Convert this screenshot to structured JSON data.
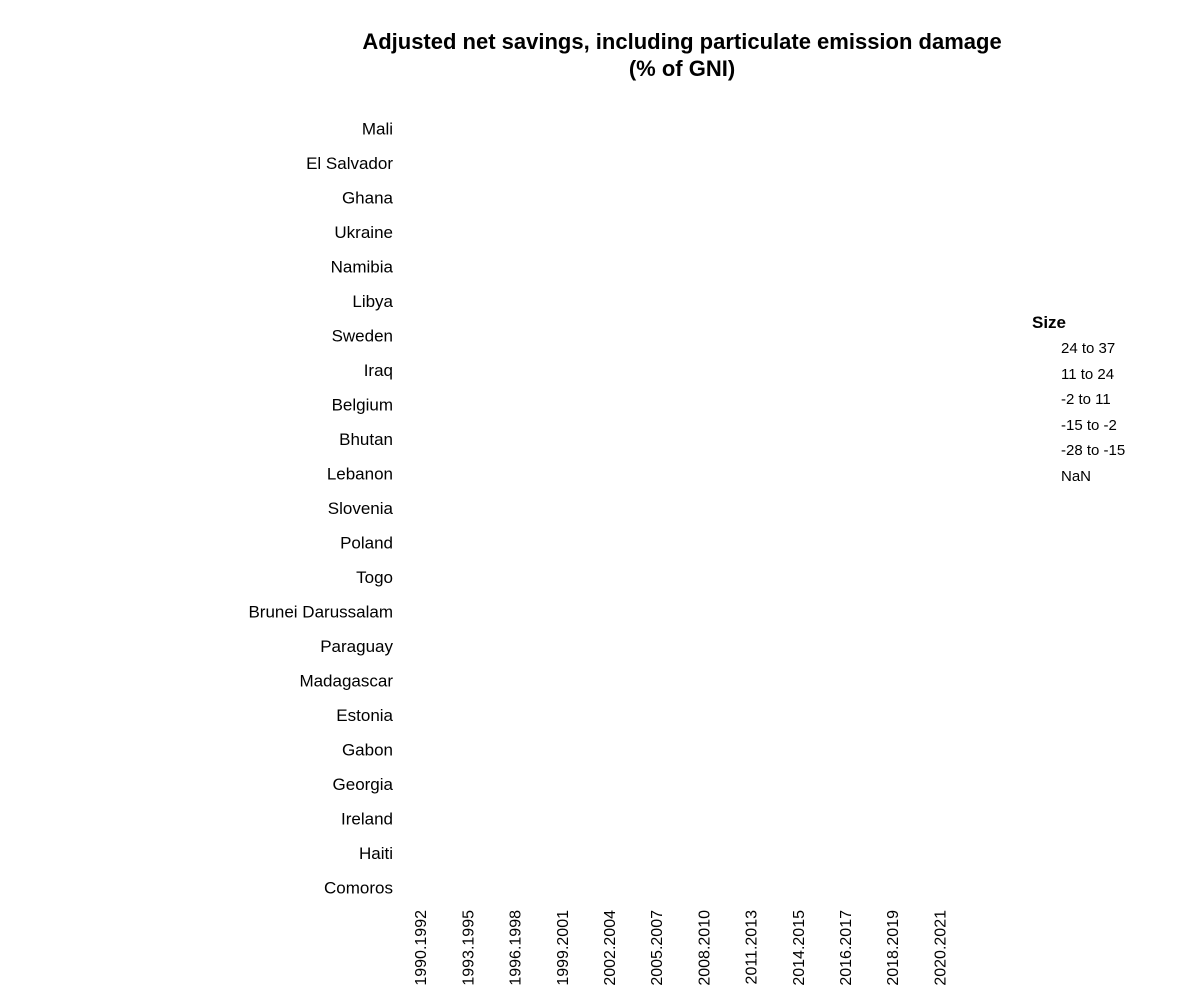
{
  "chart_data": {
    "type": "scatter",
    "title": "Adjusted net savings, including particulate emission damage",
    "subtitle": "(% of GNI)",
    "categories_y": [
      "Mali",
      "El Salvador",
      "Ghana",
      "Ukraine",
      "Namibia",
      "Libya",
      "Sweden",
      "Iraq",
      "Belgium",
      "Bhutan",
      "Lebanon",
      "Slovenia",
      "Poland",
      "Togo",
      "Brunei Darussalam",
      "Paraguay",
      "Madagascar",
      "Estonia",
      "Gabon",
      "Georgia",
      "Ireland",
      "Haiti",
      "Comoros"
    ],
    "categories_x": [
      "1990.1992",
      "1993.1995",
      "1996.1998",
      "1999.2001",
      "2002.2004",
      "2005.2007",
      "2008.2010",
      "2011.2013",
      "2014.2015",
      "2016.2017",
      "2018.2019",
      "2020.2021"
    ],
    "series": [],
    "legend": {
      "title": "Size",
      "position": "right",
      "items": [
        "24 to 37",
        "11 to 24",
        "-2 to 11",
        "-15 to -2",
        "-28 to -15",
        "NaN"
      ]
    },
    "grid": false
  }
}
